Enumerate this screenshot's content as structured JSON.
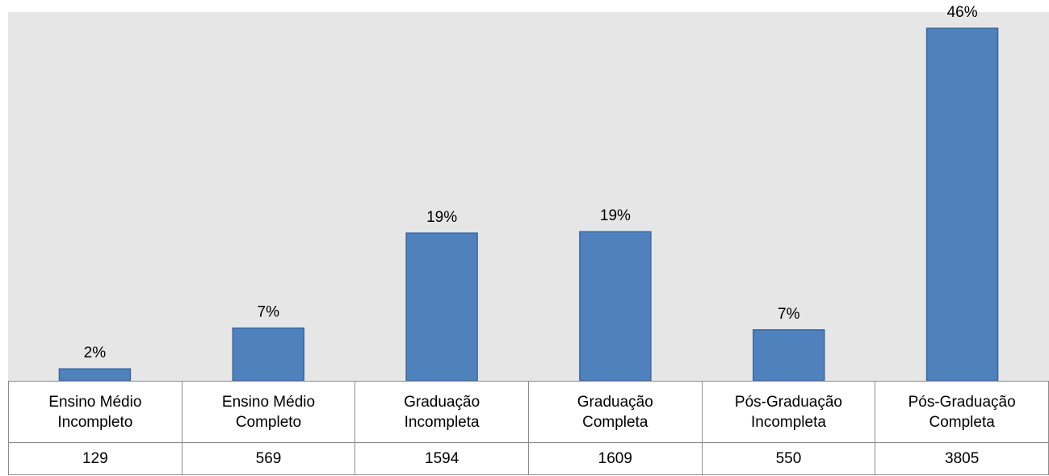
{
  "chart_data": {
    "type": "bar",
    "categories": [
      "Ensino Médio Incompleto",
      "Ensino Médio Completo",
      "Graduação Incompleta",
      "Graduação Completa",
      "Pós-Graduação Incompleta",
      "Pós-Graduação Completa"
    ],
    "values": [
      1.56,
      6.89,
      19.31,
      19.49,
      6.66,
      46.09
    ],
    "value_labels": [
      "2%",
      "7%",
      "19%",
      "19%",
      "7%",
      "46%"
    ],
    "counts": [
      129,
      569,
      1594,
      1609,
      550,
      3805
    ],
    "color": "#4f81bd"
  }
}
